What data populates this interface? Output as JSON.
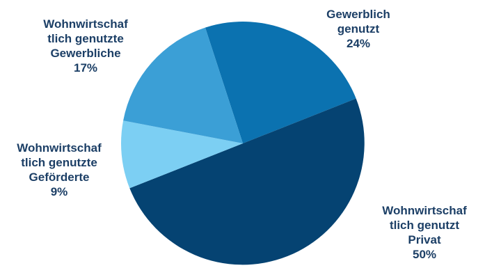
{
  "chart_data": {
    "type": "pie",
    "slices": [
      {
        "key": "gewerblich",
        "label": [
          "Gewerblich",
          "genutzt"
        ],
        "percent_label": "24%",
        "value": 24,
        "color": "#0b72b0"
      },
      {
        "key": "privat",
        "label": [
          "Wohnwirtschaf",
          "tlich genutzt",
          "Privat"
        ],
        "percent_label": "50%",
        "value": 50,
        "color": "#054372"
      },
      {
        "key": "gefoerderte",
        "label": [
          "Wohnwirtschaf",
          "tlich genutzte",
          "Geförderte"
        ],
        "percent_label": "9%",
        "value": 9,
        "color": "#7ccff3"
      },
      {
        "key": "gewerbliche",
        "label": [
          "Wohnwirtschaf",
          "tlich genutzte",
          "Gewerbliche"
        ],
        "percent_label": "17%",
        "value": 17,
        "color": "#3b9fd6"
      }
    ],
    "start_angle_deg": -18,
    "direction": "clockwise",
    "legend": "none"
  }
}
